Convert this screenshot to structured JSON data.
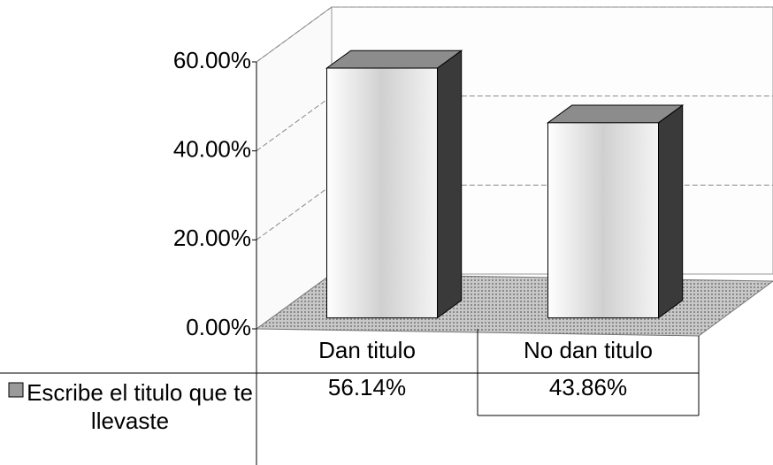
{
  "chart_data": {
    "type": "bar3d",
    "categories": [
      "Dan titulo",
      "No dan titulo"
    ],
    "series": [
      {
        "name": "Escribe el titulo que te llevaste",
        "color": "#e6e6e6",
        "values": [
          56.14,
          43.86
        ],
        "value_labels": [
          "56.14%",
          "43.86%"
        ]
      }
    ],
    "ylim": [
      0,
      60
    ],
    "yticks": [
      {
        "value": 0,
        "label": "0.00%"
      },
      {
        "value": 20,
        "label": "20.00%"
      },
      {
        "value": 40,
        "label": "40.00%"
      },
      {
        "value": 60,
        "label": "60.00%"
      }
    ],
    "grid": true,
    "data_table": true
  }
}
